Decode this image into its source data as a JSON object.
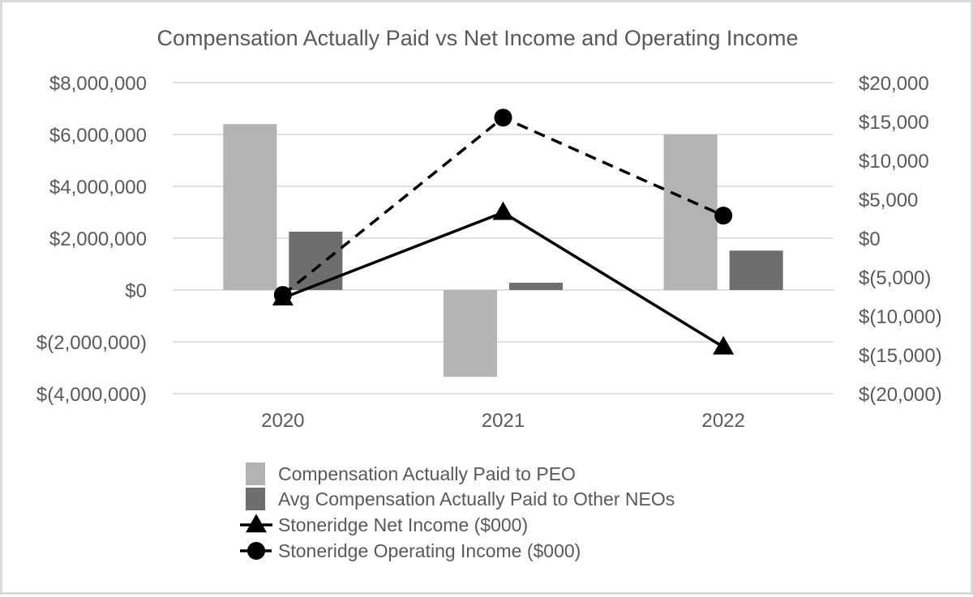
{
  "chart_data": {
    "type": "bar",
    "title": "Compensation Actually Paid vs Net Income and Operating Income",
    "categories": [
      "2020",
      "2021",
      "2022"
    ],
    "ylim": [
      -4000000,
      8000000
    ],
    "y2lim": [
      -20000,
      20000
    ],
    "y_ticks": [
      8000000,
      6000000,
      4000000,
      2000000,
      0,
      -2000000,
      -4000000
    ],
    "y_tick_labels": [
      "$8,000,000",
      "$6,000,000",
      "$4,000,000",
      "$2,000,000",
      "$0",
      "$(2,000,000)",
      "$(4,000,000)"
    ],
    "y2_ticks": [
      20000,
      15000,
      10000,
      5000,
      0,
      -5000,
      -10000,
      -15000,
      -20000
    ],
    "y2_tick_labels": [
      "$20,000",
      "$15,000",
      "$10,000",
      "$5,000",
      "$0",
      "$(5,000)",
      "$(10,000)",
      "$(15,000)",
      "$(20,000)"
    ],
    "grid": true,
    "legend_position": "bottom",
    "series": [
      {
        "name": "Compensation Actually Paid to PEO",
        "type": "bar",
        "axis": "left",
        "color": "#b3b3b3",
        "values": [
          6400000,
          -3350000,
          6000000
        ]
      },
      {
        "name": "Avg Compensation Actually Paid to Other NEOs",
        "type": "bar",
        "axis": "left",
        "color": "#6e6e6e",
        "values": [
          2250000,
          280000,
          1520000
        ]
      },
      {
        "name": "Stoneridge Net Income ($000)",
        "type": "line",
        "axis": "right",
        "color": "#000000",
        "marker": "triangle",
        "line_style": "solid",
        "values": [
          -7700,
          3300,
          -14000
        ]
      },
      {
        "name": "Stoneridge Operating Income ($000)",
        "type": "line",
        "axis": "right",
        "color": "#000000",
        "marker": "circle",
        "line_style": "dashed",
        "values": [
          -7300,
          15500,
          2900
        ]
      }
    ]
  }
}
